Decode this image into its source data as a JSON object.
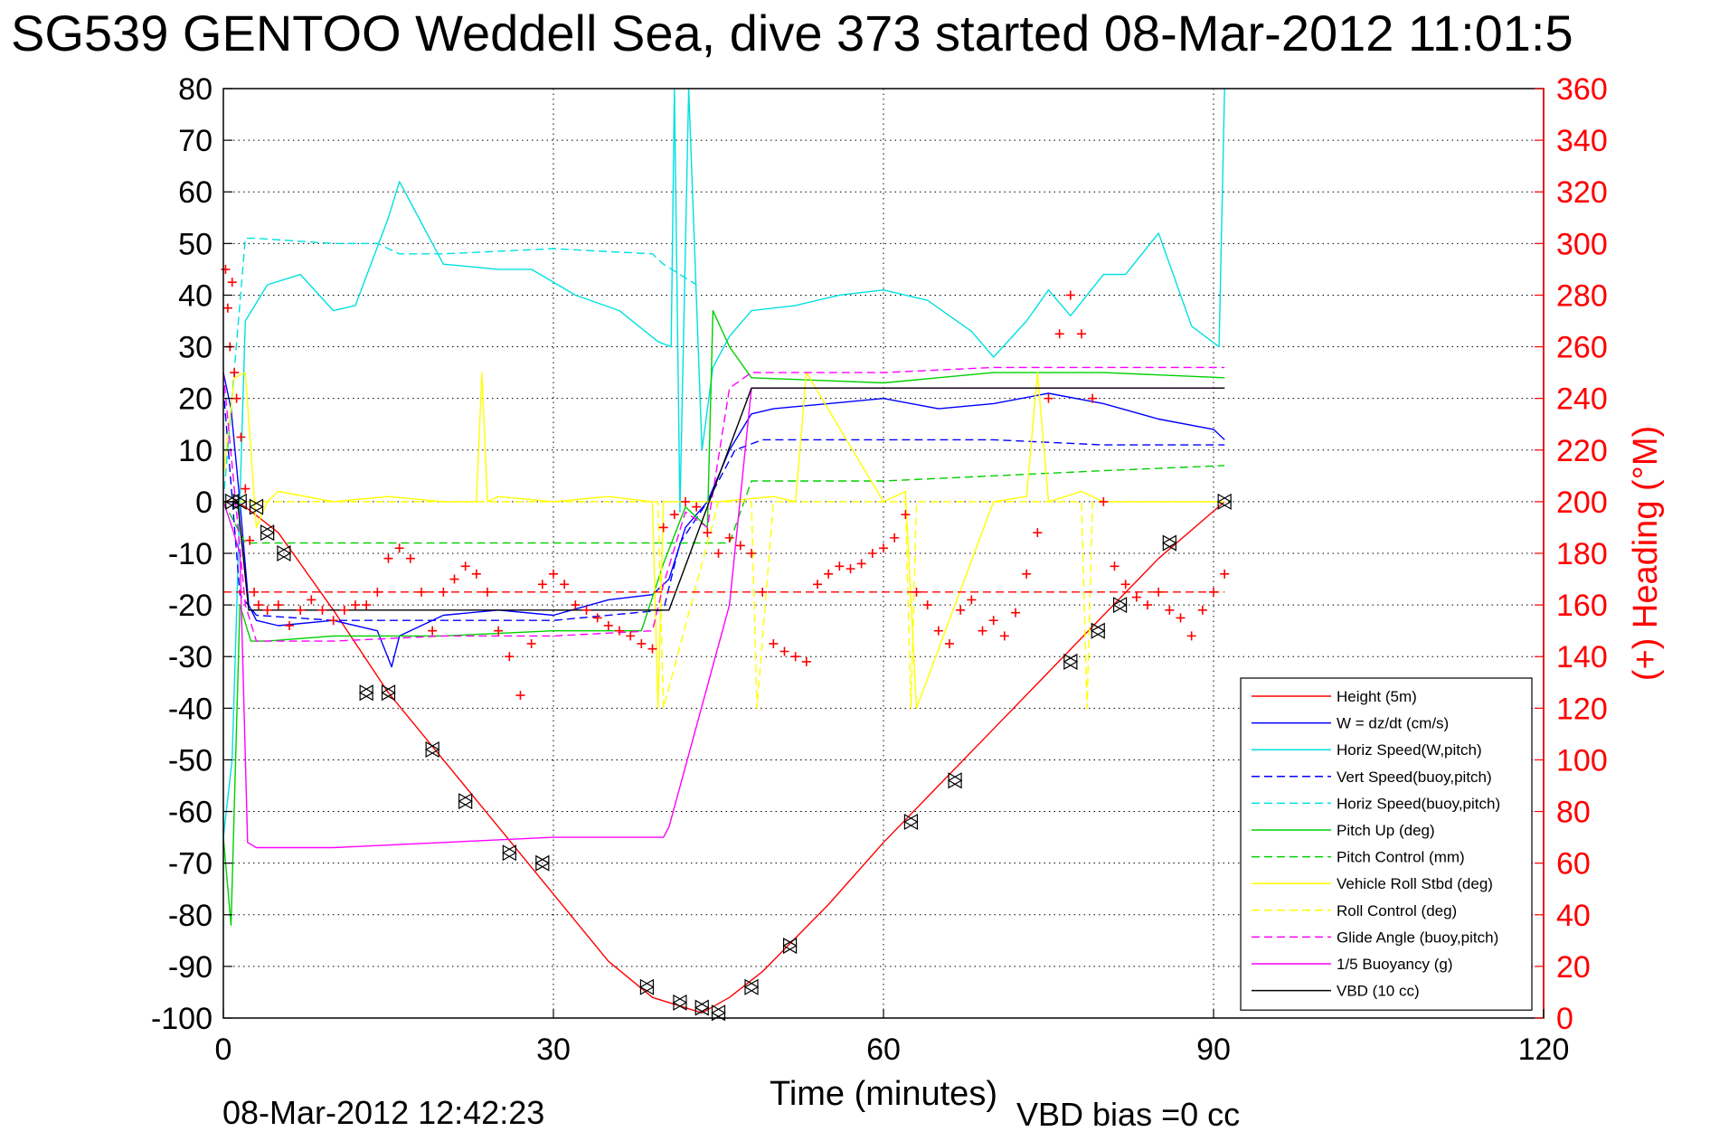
{
  "chart_data": {
    "type": "line",
    "title": "SG539 GENTOO Weddell Sea, dive 373 started 08-Mar-2012 11:01:5",
    "xlabel": "Time (minutes)",
    "ylabel": "",
    "ylabel_right": "(+) Heading (°M)",
    "xlim": [
      0,
      120
    ],
    "ylim": [
      -100,
      80
    ],
    "ylim_right": [
      0,
      360
    ],
    "x_ticks": [
      "0",
      "30",
      "60",
      "90",
      "120"
    ],
    "y_ticks": [
      "80",
      "70",
      "60",
      "50",
      "40",
      "30",
      "20",
      "10",
      "0",
      "-10",
      "-20",
      "-30",
      "-40",
      "-50",
      "-60",
      "-70",
      "-80",
      "-90",
      "-100"
    ],
    "y_ticks_right": [
      "360",
      "340",
      "320",
      "300",
      "280",
      "260",
      "240",
      "220",
      "200",
      "180",
      "160",
      "140",
      "120",
      "100",
      "80",
      "60",
      "40",
      "20",
      "0"
    ],
    "grid": true,
    "legend_position": "bottom-right",
    "footer_left": "08-Mar-2012 12:42:23",
    "footer_right": "VBD bias =0 cc",
    "series": [
      {
        "name": "Height (5m)",
        "color": "#ff0000",
        "style": "solid",
        "x": [
          0,
          1,
          2,
          5,
          10,
          15,
          20,
          25,
          30,
          35,
          39,
          42,
          43.5,
          46,
          49,
          55,
          60,
          65,
          70,
          75,
          80,
          85,
          91
        ],
        "y": [
          0,
          0,
          -1,
          -6,
          -21,
          -37,
          -50,
          -63,
          -76,
          -89,
          -96,
          -98,
          -99,
          -96,
          -91,
          -78,
          -66,
          -55,
          -44,
          -33,
          -22,
          -11,
          0
        ]
      },
      {
        "name": "W = dz/dt (cm/s)",
        "color": "#0000ff",
        "style": "solid",
        "x": [
          0,
          0.7,
          1.5,
          2.3,
          3,
          5,
          10,
          14,
          15.3,
          16,
          20,
          25,
          30,
          35,
          39,
          40.5,
          42,
          44,
          46,
          48,
          50,
          55,
          60,
          65,
          70,
          75,
          80,
          85,
          90,
          91
        ],
        "y": [
          25,
          18,
          0,
          -20,
          -23,
          -24,
          -23,
          -25,
          -32,
          -26,
          -22,
          -21,
          -22,
          -19,
          -18,
          -15,
          -5,
          0,
          10,
          17,
          18,
          19,
          20,
          18,
          19,
          21,
          19,
          16,
          14,
          12
        ]
      },
      {
        "name": "Horiz Speed(W,pitch)",
        "color": "#00e0e0",
        "style": "solid",
        "x": [
          0,
          0.8,
          2,
          4,
          7,
          10,
          12,
          15,
          16,
          18,
          20,
          25,
          28,
          32,
          36,
          39.5,
          40.7,
          41,
          41.5,
          42.3,
          43.5,
          44.5,
          46,
          48,
          52,
          56,
          60,
          64,
          68,
          70,
          73,
          75,
          77,
          80,
          82,
          85,
          88,
          90.5,
          91
        ],
        "y": [
          -65,
          -50,
          35,
          42,
          44,
          37,
          38,
          55,
          62,
          54,
          46,
          45,
          45,
          40,
          37,
          31,
          30,
          80,
          -2,
          80,
          10,
          26,
          32,
          37,
          38,
          40,
          41,
          39,
          33,
          28,
          35,
          41,
          36,
          44,
          44,
          52,
          34,
          30,
          80
        ]
      },
      {
        "name": "Vert Speed(buoy,pitch)",
        "color": "#0000ff",
        "style": "dashed",
        "x": [
          0,
          1.5,
          3,
          10,
          20,
          30,
          40,
          41.5,
          44,
          46.5,
          49,
          60,
          70,
          80,
          91
        ],
        "y": [
          22,
          -18,
          -22,
          -23,
          -23,
          -23,
          -21,
          -8,
          0,
          10,
          12,
          12,
          12,
          11,
          11
        ]
      },
      {
        "name": "Horiz Speed(buoy,pitch)",
        "color": "#00e0e0",
        "style": "dashed",
        "x": [
          0,
          2,
          3,
          10,
          14,
          16,
          20,
          30,
          39,
          40,
          43
        ],
        "y": [
          0,
          51,
          51,
          50,
          50,
          48,
          48,
          49,
          48,
          46,
          42
        ]
      },
      {
        "name": "Pitch Up (deg)",
        "color": "#00d000",
        "style": "solid",
        "x": [
          0,
          0.7,
          1.5,
          2.5,
          4,
          10,
          20,
          30,
          38,
          40,
          42,
          44,
          44.5,
          46,
          48,
          60,
          70,
          80,
          91
        ],
        "y": [
          -65,
          -82,
          -20,
          -27,
          -27,
          -26,
          -26,
          -25,
          -25,
          -12,
          -1,
          -5,
          37,
          30,
          24,
          23,
          25,
          25,
          24
        ]
      },
      {
        "name": "Pitch Control (mm)",
        "color": "#00d000",
        "style": "dashed",
        "x": [
          0,
          2,
          10,
          40,
          46,
          48,
          60,
          70,
          80,
          91
        ],
        "y": [
          0,
          -8,
          -8,
          -8,
          -8,
          4,
          4,
          5,
          6,
          7
        ]
      },
      {
        "name": "Vehicle Roll Stbd (deg)",
        "color": "#ffff00",
        "style": "solid",
        "x": [
          0,
          1,
          2,
          3,
          4,
          5,
          10,
          15,
          20,
          23,
          23.5,
          24,
          25,
          30,
          35,
          39,
          39.5,
          40,
          45,
          50,
          52,
          53,
          60,
          62,
          63,
          70,
          73,
          74,
          75,
          78,
          80,
          85,
          90,
          91
        ],
        "y": [
          5,
          24,
          25,
          -5,
          0,
          2,
          0,
          1,
          0,
          0,
          25,
          0,
          1,
          0,
          1,
          0,
          -40,
          0,
          0,
          1,
          0,
          25,
          0,
          2,
          -40,
          0,
          1,
          25,
          0,
          2,
          0,
          0,
          0,
          0
        ]
      },
      {
        "name": "Roll Control (deg)",
        "color": "#ffff00",
        "style": "dashed",
        "x": [
          0,
          1,
          2,
          10,
          20,
          30,
          39.5,
          40,
          45,
          48,
          48.5,
          50,
          62,
          62.5,
          63,
          70,
          78,
          78.5,
          79,
          91
        ],
        "y": [
          0,
          0,
          0,
          0,
          0,
          0,
          0,
          -40,
          0,
          0,
          -40,
          0,
          0,
          -40,
          0,
          0,
          0,
          -40,
          0,
          0
        ]
      },
      {
        "name": "Glide Angle (buoy,pitch)",
        "color": "#ff00ff",
        "style": "dashed",
        "x": [
          0,
          2,
          3,
          10,
          20,
          30,
          39,
          40,
          42,
          44,
          46,
          48,
          60,
          70,
          80,
          91
        ],
        "y": [
          25,
          -20,
          -27,
          -27,
          -26,
          -26,
          -25,
          -16,
          -2,
          -5,
          22,
          25,
          25,
          26,
          26,
          26
        ]
      },
      {
        "name": "1/5 Buoyancy (g)",
        "color": "#ff00ff",
        "style": "solid",
        "x": [
          0,
          0.8,
          1.5,
          2.2,
          3,
          10,
          20,
          30,
          40,
          40.5,
          46,
          48,
          91
        ],
        "y": [
          0,
          -5,
          -10,
          -66,
          -67,
          -67,
          -66,
          -65,
          -65,
          -63,
          -20,
          22,
          22
        ]
      },
      {
        "name": "VBD (10 cc)",
        "color": "#000000",
        "style": "solid",
        "x": [
          0,
          0.5,
          1.3,
          2.3,
          10,
          20,
          30,
          39,
          40.5,
          48,
          60,
          91
        ],
        "y": [
          0,
          0,
          0,
          -21,
          -21,
          -21,
          -21,
          -21,
          -21,
          22,
          22,
          22
        ]
      }
    ],
    "heading_series": {
      "name": "(+) Heading",
      "axis": "right",
      "color": "#ff0000",
      "marker": "+",
      "x": [
        0.2,
        0.4,
        0.6,
        0.8,
        1,
        1.2,
        1.6,
        2,
        2.4,
        2.8,
        3.2,
        4,
        5,
        6,
        7,
        8,
        9,
        10,
        11,
        12,
        13,
        14,
        15,
        16,
        17,
        18,
        19,
        20,
        21,
        22,
        23,
        24,
        25,
        26,
        27,
        28,
        29,
        30,
        31,
        32,
        33,
        34,
        35,
        36,
        37,
        38,
        39,
        40,
        41,
        42,
        43,
        44,
        45,
        46,
        47,
        48,
        49,
        50,
        51,
        52,
        53,
        54,
        55,
        56,
        57,
        58,
        59,
        60,
        61,
        62,
        63,
        64,
        65,
        66,
        67,
        68,
        69,
        70,
        71,
        72,
        73,
        74,
        75,
        76,
        77,
        78,
        79,
        80,
        81,
        82,
        83,
        84,
        85,
        86,
        87,
        88,
        89,
        90,
        91
      ],
      "y": [
        290,
        275,
        260,
        285,
        250,
        240,
        225,
        205,
        185,
        165,
        160,
        158,
        160,
        152,
        158,
        162,
        158,
        154,
        158,
        160,
        160,
        165,
        178,
        182,
        178,
        165,
        150,
        165,
        170,
        175,
        172,
        165,
        150,
        140,
        125,
        145,
        168,
        172,
        168,
        160,
        158,
        155,
        152,
        150,
        148,
        145,
        143,
        190,
        195,
        200,
        198,
        188,
        180,
        186,
        183,
        180,
        165,
        145,
        142,
        140,
        138,
        168,
        172,
        175,
        174,
        176,
        180,
        182,
        186,
        195,
        165,
        160,
        150,
        145,
        158,
        162,
        150,
        154,
        148,
        157,
        172,
        188,
        240,
        265,
        280,
        265,
        240,
        200,
        175,
        168,
        163,
        160,
        165,
        158,
        155,
        148,
        158,
        165,
        172
      ]
    },
    "heading_reference": {
      "axis": "right",
      "color": "#ff0000",
      "style": "dashed",
      "y": 165,
      "xlim": [
        0,
        91
      ]
    },
    "vbd_markers": {
      "color": "#000000",
      "marker": "triangles",
      "x": [
        0.8,
        1.5,
        3,
        4,
        5.5,
        13,
        15,
        19,
        22,
        26,
        29,
        38.5,
        41.5,
        43.5,
        45,
        48,
        51.5,
        62.5,
        66.5,
        77,
        79.5,
        81.5,
        86,
        91
      ],
      "y": [
        0,
        0,
        -1,
        -6,
        -10,
        -37,
        -37,
        -48,
        -58,
        -68,
        -70,
        -94,
        -97,
        -98,
        -99,
        -94,
        -86,
        -62,
        -54,
        -31,
        -25,
        -20,
        -8,
        0
      ]
    }
  }
}
